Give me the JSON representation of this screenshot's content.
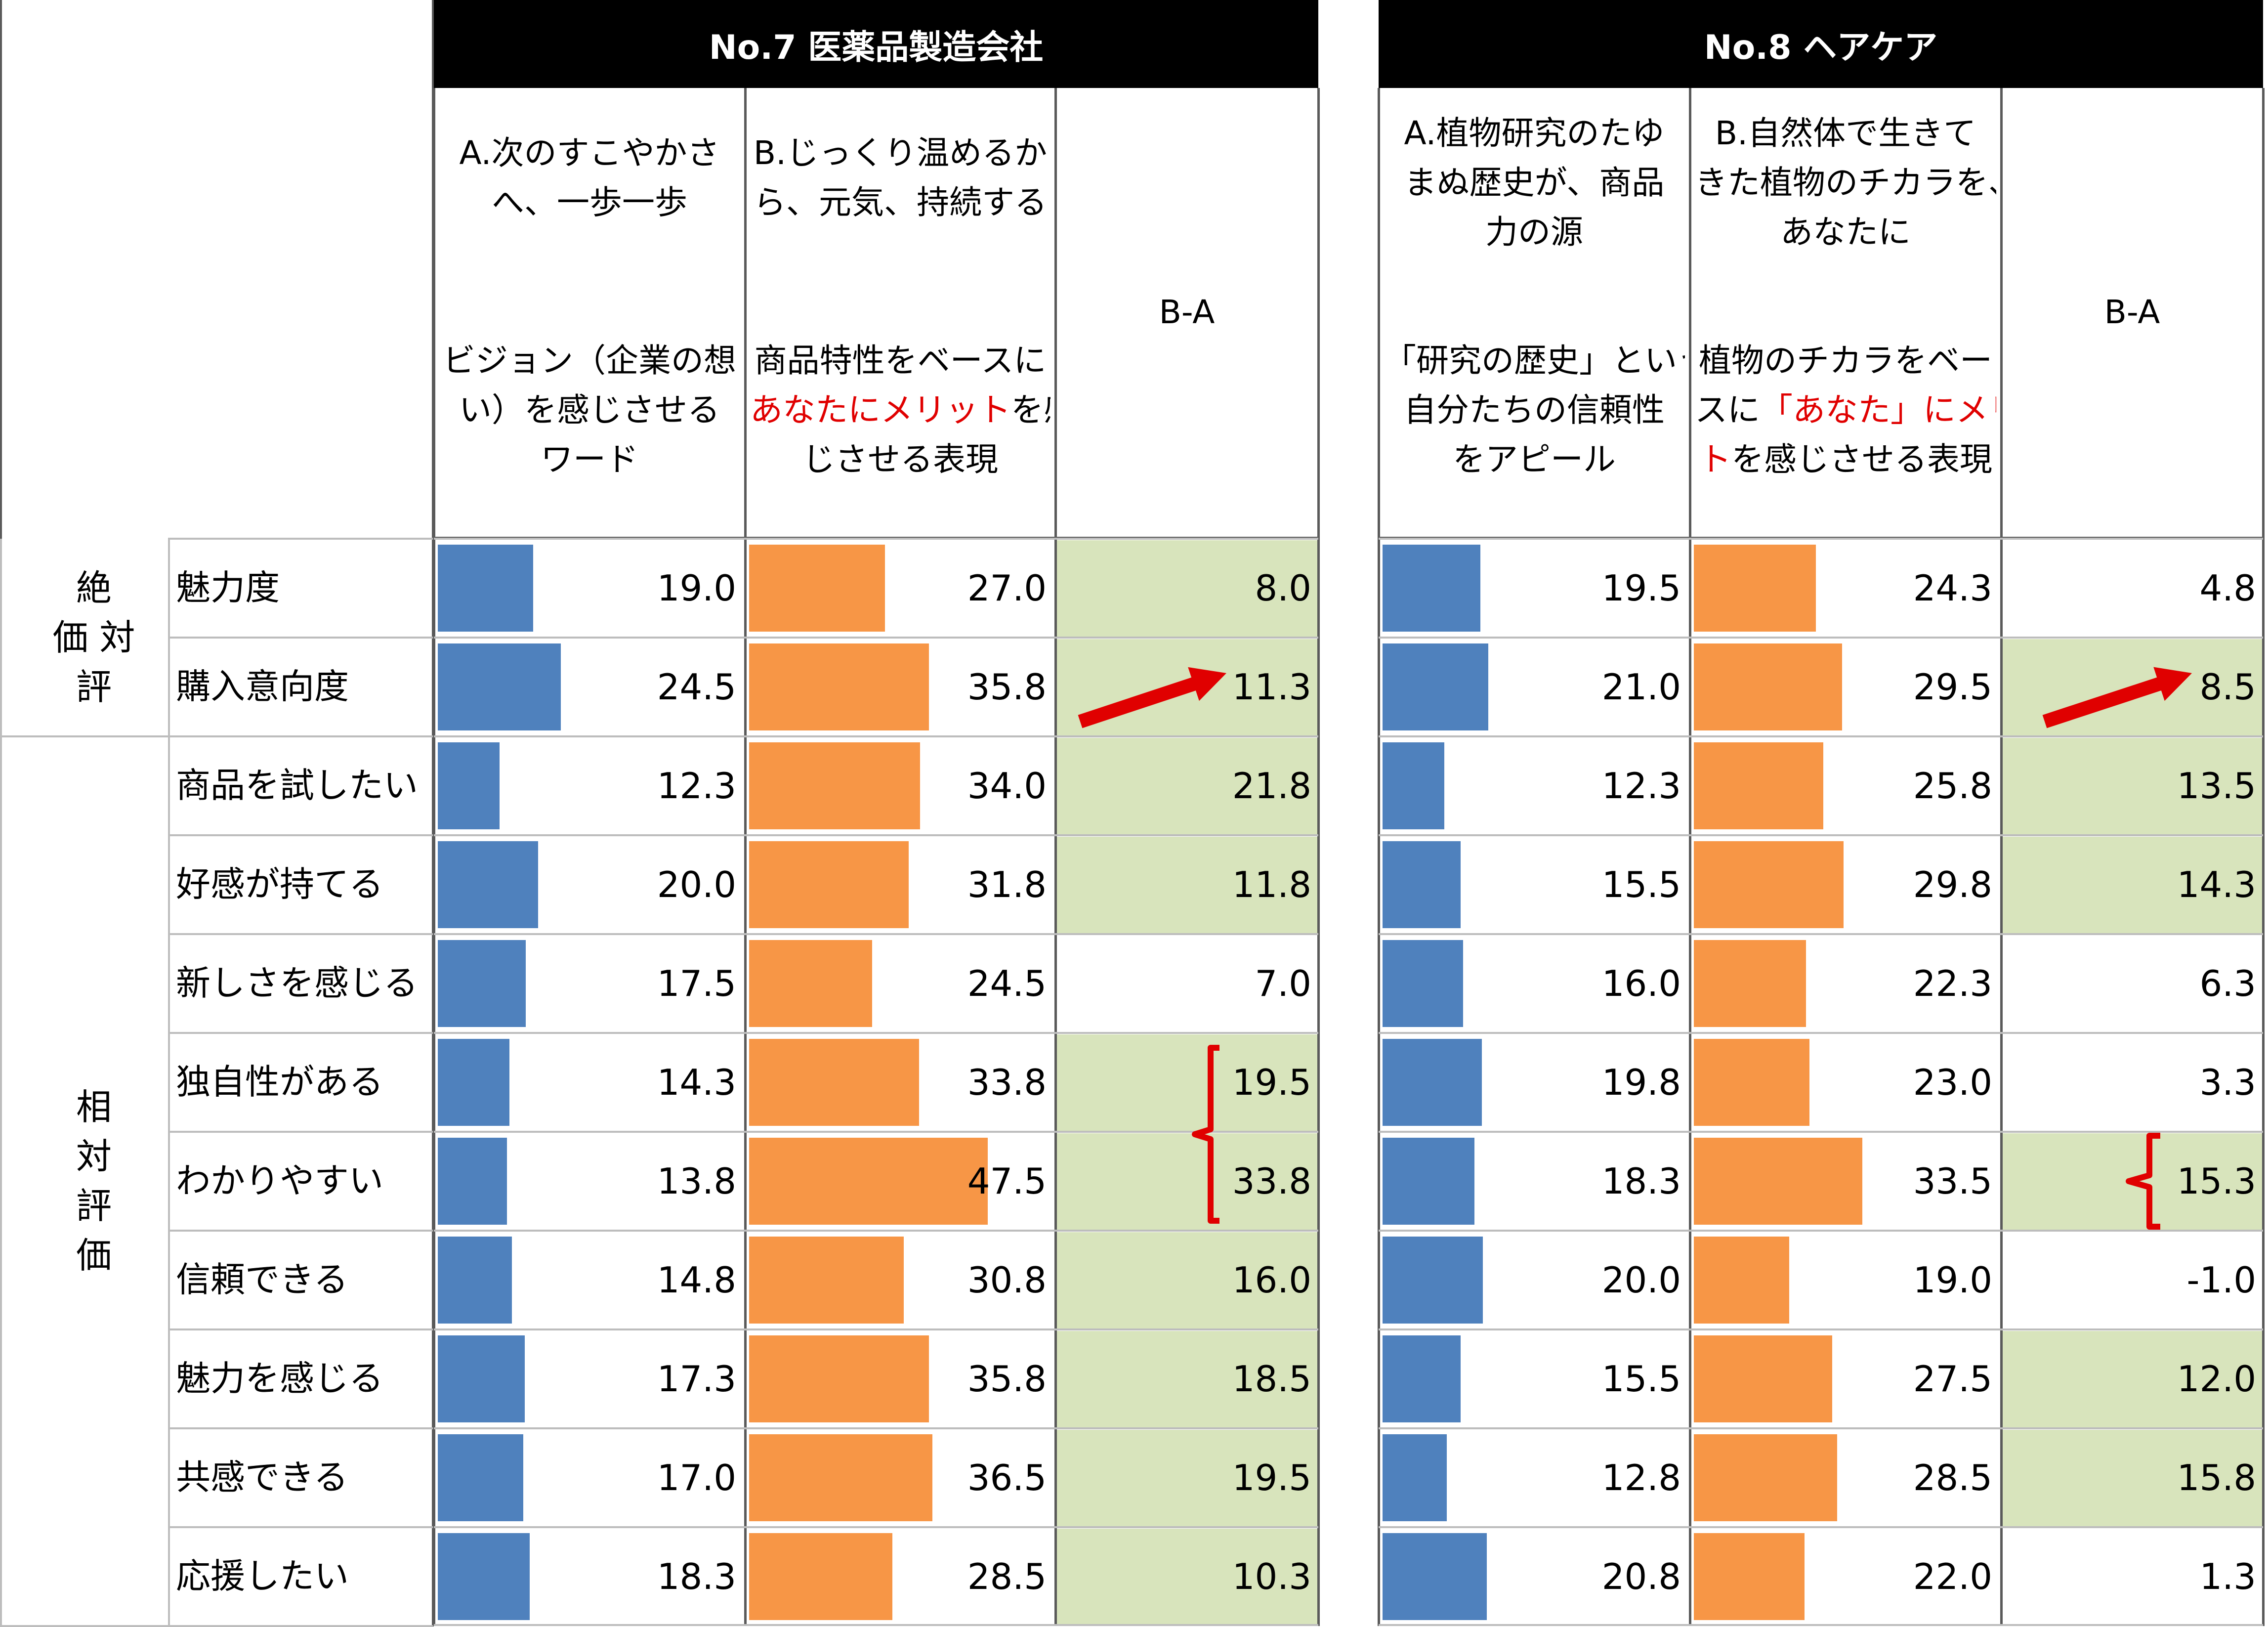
{
  "chart_data": {
    "type": "table",
    "rows": [
      "魅力度",
      "購入意向度",
      "商品を試したい",
      "好感が持てる",
      "新しさを感じる",
      "独自性がある",
      "わかりやすい",
      "信頼できる",
      "魅力を感じる",
      "共感できる",
      "応援したい"
    ],
    "row_groups": [
      {
        "label": "絶対評価",
        "display": "絶\n価 対\n評",
        "rows": [
          0,
          1
        ]
      },
      {
        "label": "相対評価",
        "display": "相\n対\n評\n価",
        "rows": [
          2,
          3,
          4,
          5,
          6,
          7,
          8,
          9,
          10
        ]
      }
    ],
    "panels": [
      {
        "title": "No.7 医薬品製造会社",
        "col_a": {
          "copy_lines": [
            "A.次のすこやかさ",
            "へ、一歩一歩"
          ],
          "desc_lines": [
            "ビジョン（企業の想",
            "い）を感じさせる",
            "ワード"
          ]
        },
        "col_b": {
          "copy_lines": [
            "B.じっくり温めるか",
            "ら、元気、持続する"
          ],
          "desc_lines": [
            [
              "商品特性をベースに"
            ],
            [
              "あなたにメリット",
              "を感"
            ],
            [
              "じさせる表現"
            ]
          ]
        },
        "col_diff": "B-A",
        "a": [
          19.0,
          24.5,
          12.3,
          20.0,
          17.5,
          14.3,
          13.8,
          14.8,
          17.3,
          17.0,
          18.3
        ],
        "b": [
          27.0,
          35.8,
          34.0,
          31.8,
          24.5,
          33.8,
          47.5,
          30.8,
          35.8,
          36.5,
          28.5
        ],
        "diff": [
          8.0,
          11.3,
          21.8,
          11.8,
          7.0,
          19.5,
          33.8,
          16.0,
          18.5,
          19.5,
          10.3
        ],
        "diff_highlight": [
          true,
          true,
          true,
          true,
          false,
          true,
          true,
          true,
          true,
          true,
          true
        ]
      },
      {
        "title": "No.8 ヘアケア",
        "col_a": {
          "copy_lines": [
            "A.植物研究のたゆ",
            "まぬ歴史が、商品",
            "力の源"
          ],
          "desc_lines": [
            "「研究の歴史」という",
            "自分たちの信頼性",
            "をアピール"
          ]
        },
        "col_b": {
          "copy_lines": [
            "B.自然体で生きて",
            "きた植物のチカラを、",
            "あなたに"
          ],
          "desc_lines": [
            [
              "植物のチカラをベー"
            ],
            [
              "スに",
              "「あなた」にメリッ"
            ],
            [
              "ト",
              "を感じさせる表現"
            ]
          ]
        },
        "col_diff": "B-A",
        "a": [
          19.5,
          21.0,
          12.3,
          15.5,
          16.0,
          19.8,
          18.3,
          20.0,
          15.5,
          12.8,
          20.8
        ],
        "b": [
          24.3,
          29.5,
          25.8,
          29.8,
          22.3,
          23.0,
          33.5,
          19.0,
          27.5,
          28.5,
          22.0
        ],
        "diff": [
          4.8,
          8.5,
          13.5,
          14.3,
          6.3,
          3.3,
          15.3,
          -1.0,
          12.0,
          15.8,
          1.3
        ],
        "diff_highlight": [
          false,
          true,
          true,
          true,
          false,
          false,
          true,
          false,
          true,
          true,
          false
        ]
      }
    ],
    "value_format": "one decimal",
    "bar_scale_max": 60
  },
  "colors": {
    "bar_a": "#4f81bd",
    "bar_b": "#f79646",
    "highlight": "#d8e4bc",
    "header_bg": "#000000",
    "accent_red": "#e00000"
  },
  "annotations": [
    "red-arrow at 購入意向度 B-A (both panels)",
    "red brace over 独自性がある/わかりやすい B-A in No.7",
    "red brace at わかりやすい B-A in No.8"
  ]
}
